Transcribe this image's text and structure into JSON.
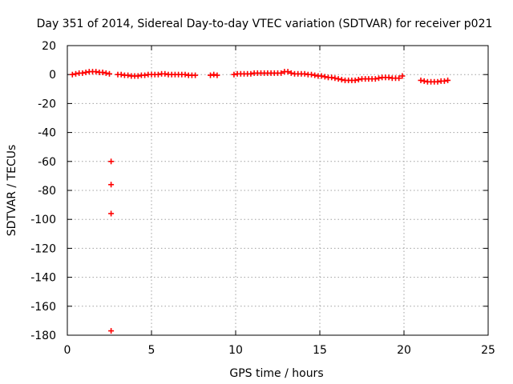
{
  "chart_data": {
    "type": "scatter",
    "title": "Day 351 of 2014, Sidereal Day-to-day VTEC variation (SDTVAR) for receiver p021",
    "xlabel": "GPS time / hours",
    "ylabel": "SDTVAR / TECUs",
    "xlim": [
      0,
      25
    ],
    "ylim": [
      -180,
      20
    ],
    "xticks": [
      0,
      5,
      10,
      15,
      20,
      25
    ],
    "yticks": [
      20,
      0,
      -20,
      -40,
      -60,
      -80,
      -100,
      -120,
      -140,
      -160,
      -180
    ],
    "grid": true,
    "marker": "+",
    "series_color": "#ff0000",
    "series": [
      {
        "name": "SDTVAR",
        "x": [
          0.3,
          0.5,
          0.7,
          0.9,
          1.1,
          1.3,
          1.5,
          1.7,
          1.9,
          2.1,
          2.3,
          2.5,
          2.6,
          2.6,
          2.6,
          2.6,
          3.0,
          3.2,
          3.4,
          3.6,
          3.8,
          4.0,
          4.2,
          4.4,
          4.6,
          4.8,
          5.0,
          5.2,
          5.4,
          5.6,
          5.8,
          6.0,
          6.2,
          6.4,
          6.6,
          6.8,
          7.0,
          7.2,
          7.4,
          7.6,
          8.5,
          8.7,
          8.9,
          9.9,
          10.1,
          10.3,
          10.5,
          10.7,
          10.9,
          11.1,
          11.3,
          11.5,
          11.7,
          11.9,
          12.1,
          12.3,
          12.5,
          12.7,
          12.9,
          13.1,
          13.3,
          13.5,
          13.7,
          13.9,
          14.1,
          14.3,
          14.5,
          14.7,
          14.9,
          15.1,
          15.3,
          15.5,
          15.7,
          15.9,
          16.1,
          16.3,
          16.5,
          16.7,
          16.9,
          17.1,
          17.3,
          17.5,
          17.7,
          17.9,
          18.1,
          18.3,
          18.5,
          18.7,
          18.9,
          19.1,
          19.3,
          19.5,
          19.7,
          19.9,
          21.0,
          21.2,
          21.4,
          21.6,
          21.8,
          22.0,
          22.2,
          22.4,
          22.6
        ],
        "y": [
          0,
          0.5,
          1,
          1,
          1.5,
          2,
          2,
          2,
          1.5,
          1.5,
          1,
          0.5,
          -60,
          -76,
          -96,
          -177,
          0,
          0,
          -0.5,
          -0.5,
          -1,
          -1,
          -1,
          -0.5,
          -0.5,
          0,
          0,
          0,
          0,
          0.5,
          0.5,
          0,
          0,
          0,
          0,
          0,
          0,
          -0.5,
          -0.5,
          -0.5,
          -0.5,
          0,
          -0.5,
          0,
          0.5,
          0.5,
          0.5,
          0.5,
          0.5,
          1,
          1,
          1,
          1,
          1,
          1,
          1,
          1,
          1,
          2,
          2,
          1,
          0.5,
          0.5,
          0.5,
          0.5,
          0,
          0,
          -0.5,
          -1,
          -1,
          -1.5,
          -2,
          -2,
          -2.5,
          -3,
          -3.5,
          -4,
          -4,
          -4,
          -4,
          -3.5,
          -3,
          -3,
          -3,
          -3,
          -3,
          -2.5,
          -2,
          -2,
          -2,
          -2.5,
          -2.5,
          -2.5,
          -1,
          -4,
          -4.5,
          -5,
          -5,
          -5,
          -5,
          -4.5,
          -4.5,
          -4
        ]
      }
    ]
  }
}
